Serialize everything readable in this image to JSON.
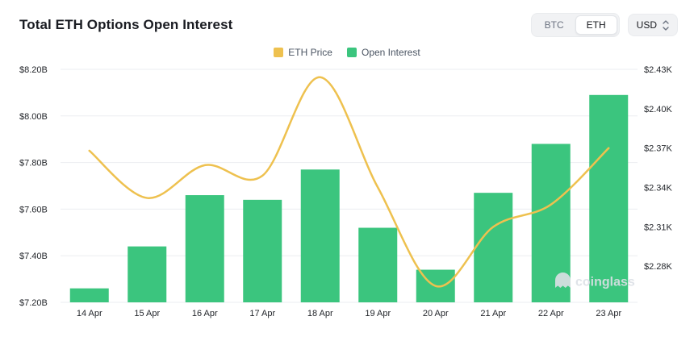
{
  "header": {
    "title": "Total ETH Options Open Interest",
    "coin_toggle": {
      "options": [
        "BTC",
        "ETH"
      ],
      "selected": "ETH"
    },
    "currency_selector": {
      "value": "USD"
    }
  },
  "legend": {
    "items": [
      {
        "label": "ETH Price",
        "color": "#eec14f"
      },
      {
        "label": "Open Interest",
        "color": "#3bc57e"
      }
    ]
  },
  "watermark": "coinglass",
  "chart_data": {
    "type": "bar+line",
    "title": "Total ETH Options Open Interest",
    "categories": [
      "14 Apr",
      "15 Apr",
      "16 Apr",
      "17 Apr",
      "18 Apr",
      "19 Apr",
      "20 Apr",
      "21 Apr",
      "22 Apr",
      "23 Apr"
    ],
    "series": [
      {
        "name": "Open Interest",
        "type": "bar",
        "axis": "left",
        "unit": "$B",
        "color": "#3bc57e",
        "values": [
          7.26,
          7.44,
          7.66,
          7.64,
          7.77,
          7.52,
          7.34,
          7.67,
          7.88,
          8.09
        ]
      },
      {
        "name": "ETH Price",
        "type": "line",
        "axis": "right",
        "unit": "$K",
        "color": "#eec14f",
        "values": [
          2.368,
          2.332,
          2.357,
          2.349,
          2.424,
          2.34,
          2.265,
          2.31,
          2.327,
          2.37
        ]
      }
    ],
    "left_axis": {
      "label": "Open Interest",
      "min": 7.2,
      "max": 8.2,
      "ticks": [
        "$7.20B",
        "$7.40B",
        "$7.60B",
        "$7.80B",
        "$8.00B",
        "$8.20B"
      ]
    },
    "right_axis": {
      "label": "ETH Price",
      "min": 2.2525,
      "max": 2.43,
      "tick_min": 2.28,
      "tick_step": 0.03,
      "ticks": [
        "$2.28K",
        "$2.31K",
        "$2.34K",
        "$2.37K",
        "$2.40K",
        "$2.43K"
      ]
    },
    "grid": true,
    "legend_position": "top"
  }
}
